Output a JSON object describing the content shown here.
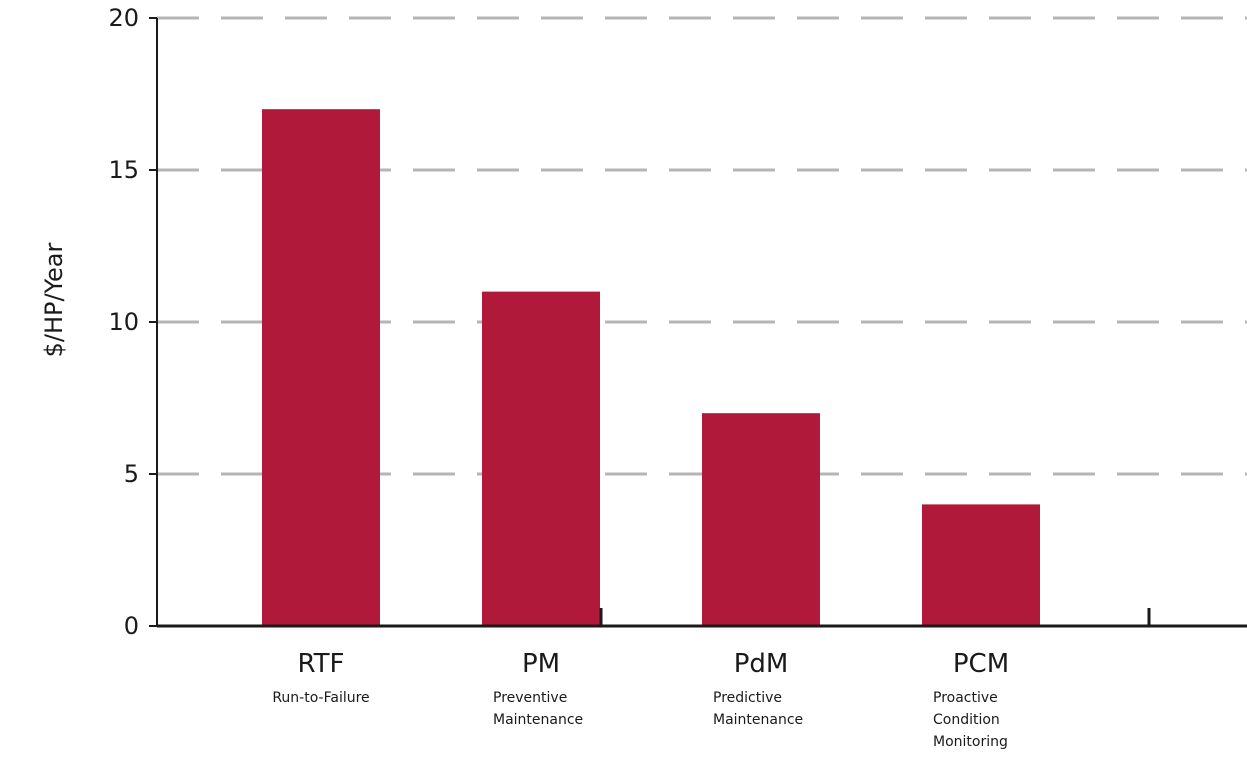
{
  "chart_data": {
    "type": "bar",
    "ylabel": "$/HP/Year",
    "ylim": [
      0,
      20
    ],
    "yticks": [
      0,
      5,
      10,
      15,
      20
    ],
    "grid": true,
    "grid_style": "dashed",
    "bar_color": "#b0193a",
    "categories": [
      {
        "label": "RTF",
        "sublabel": [
          "Run-to-Failure"
        ]
      },
      {
        "label": "PM",
        "sublabel": [
          "Preventive",
          "Maintenance"
        ]
      },
      {
        "label": "PdM",
        "sublabel": [
          "Predictive",
          "Maintenance"
        ]
      },
      {
        "label": "PCM",
        "sublabel": [
          "Proactive",
          "Condition",
          "Monitoring"
        ]
      }
    ],
    "values": [
      17,
      11,
      7,
      4
    ]
  }
}
